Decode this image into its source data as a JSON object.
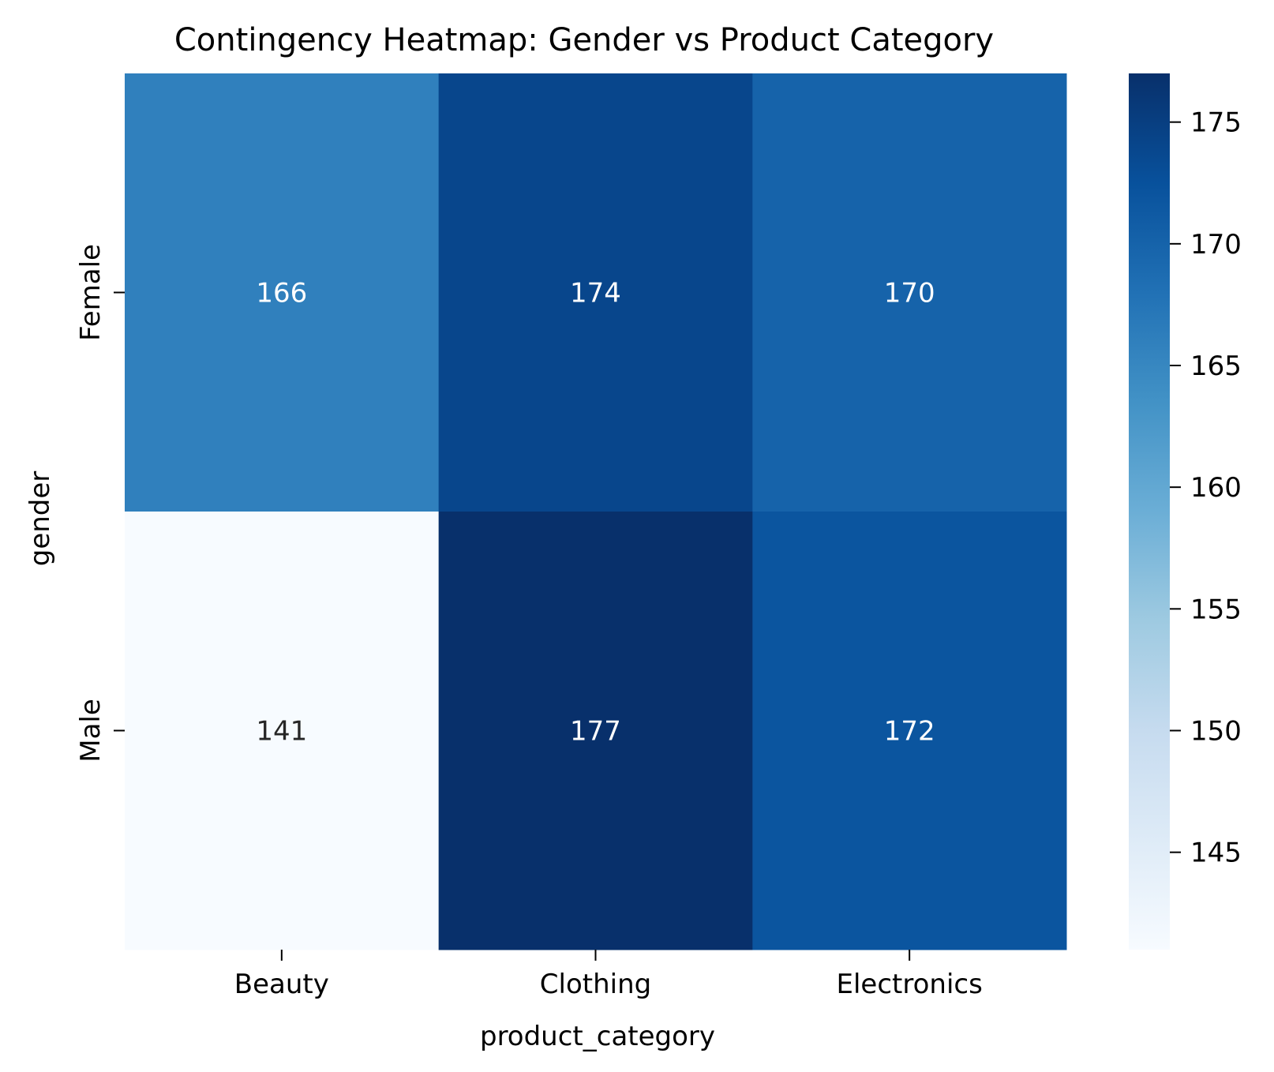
{
  "chart_data": {
    "type": "heatmap",
    "title": "Contingency Heatmap: Gender vs Product Category",
    "xlabel": "product_category",
    "ylabel": "gender",
    "x_categories": [
      "Beauty",
      "Clothing",
      "Electronics"
    ],
    "y_categories": [
      "Female",
      "Male"
    ],
    "values": [
      [
        166,
        174,
        170
      ],
      [
        141,
        177,
        172
      ]
    ],
    "colormap": "Blues",
    "colorbar": {
      "range": [
        141,
        177
      ],
      "ticks": [
        145,
        150,
        155,
        160,
        165,
        170,
        175
      ]
    },
    "annot": true
  }
}
